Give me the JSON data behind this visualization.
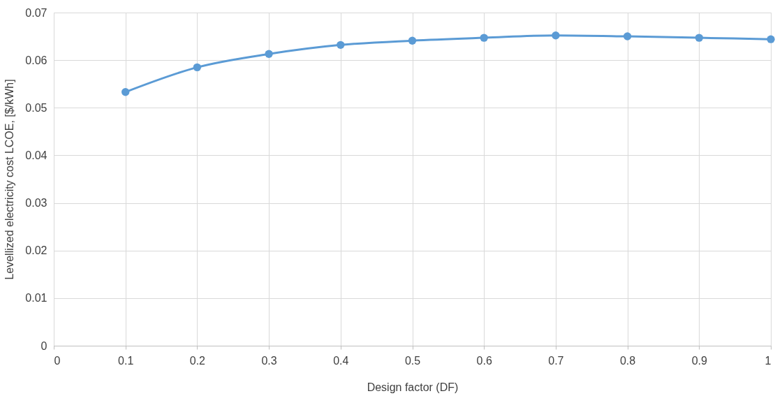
{
  "chart_data": {
    "type": "line",
    "xlabel": "Design factor (DF)",
    "ylabel": "Levellized electricity cost LCOE, [$/kWh]",
    "x": [
      0.1,
      0.2,
      0.3,
      0.4,
      0.5,
      0.6,
      0.7,
      0.8,
      0.9,
      1.0
    ],
    "series": [
      {
        "color": "#5b9bd5",
        "values": [
          0.0533,
          0.0585,
          0.0613,
          0.0632,
          0.0641,
          0.0647,
          0.0652,
          0.065,
          0.0647,
          0.0644
        ]
      }
    ],
    "xlim": [
      0,
      1
    ],
    "xticks": [
      0,
      0.1,
      0.2,
      0.3,
      0.4,
      0.5,
      0.6,
      0.7,
      0.8,
      0.9,
      1
    ],
    "ylim": [
      0,
      0.07
    ],
    "yticks": [
      0,
      0.01,
      0.02,
      0.03,
      0.04,
      0.05,
      0.06,
      0.07
    ],
    "grid": true,
    "marker": "circle",
    "line_style": "solid"
  }
}
